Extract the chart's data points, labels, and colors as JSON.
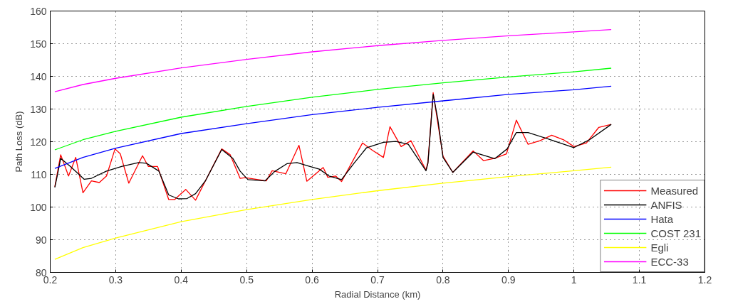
{
  "chart_data": {
    "type": "line",
    "xlabel": "Radial Distance (km)",
    "ylabel": "Path Loss (dB)",
    "xlim": [
      0.2,
      1.2
    ],
    "xticks": [
      0.2,
      0.3,
      0.4,
      0.5,
      0.6,
      0.7,
      0.8,
      0.9,
      1,
      1.1,
      1.2
    ],
    "ylim": [
      80,
      160
    ],
    "yticks": [
      80,
      90,
      100,
      110,
      120,
      130,
      140,
      150,
      160
    ],
    "grid": true,
    "legend": "bottom right",
    "marker": "none",
    "line_style": "solid",
    "series": [
      {
        "name": "Measured",
        "color": "#ff0000",
        "x": [
          0.207,
          0.216,
          0.228,
          0.239,
          0.25,
          0.263,
          0.275,
          0.286,
          0.299,
          0.307,
          0.32,
          0.341,
          0.35,
          0.364,
          0.381,
          0.39,
          0.407,
          0.422,
          0.437,
          0.462,
          0.475,
          0.49,
          0.498,
          0.53,
          0.539,
          0.56,
          0.58,
          0.592,
          0.617,
          0.624,
          0.636,
          0.645,
          0.677,
          0.692,
          0.709,
          0.719,
          0.736,
          0.751,
          0.774,
          0.777,
          0.785,
          0.791,
          0.8,
          0.815,
          0.846,
          0.862,
          0.879,
          0.897,
          0.912,
          0.93,
          0.948,
          0.966,
          0.985,
          1.0,
          1.019,
          1.038,
          1.057
        ],
        "values": [
          106.2,
          116.0,
          109.5,
          115.2,
          104.4,
          108.0,
          107.5,
          109.5,
          117.8,
          116.3,
          107.3,
          115.7,
          112.4,
          112.4,
          102.3,
          102.3,
          105.4,
          102.1,
          108.0,
          117.8,
          116.0,
          108.8,
          109.0,
          108.0,
          111.1,
          110.2,
          118.9,
          107.9,
          112.1,
          109.1,
          109.5,
          107.8,
          119.6,
          117.4,
          115.2,
          124.6,
          118.5,
          120.3,
          111.3,
          113.8,
          135.0,
          127.1,
          115.6,
          110.6,
          117.2,
          114.2,
          114.9,
          116.3,
          126.6,
          119.2,
          120.3,
          122.0,
          120.5,
          118.5,
          119.6,
          124.4,
          125.3
        ]
      },
      {
        "name": "ANFIS",
        "color": "#000000",
        "x": [
          0.207,
          0.211,
          0.216,
          0.231,
          0.252,
          0.263,
          0.286,
          0.309,
          0.335,
          0.347,
          0.366,
          0.381,
          0.396,
          0.409,
          0.422,
          0.437,
          0.462,
          0.479,
          0.49,
          0.502,
          0.528,
          0.543,
          0.562,
          0.577,
          0.592,
          0.611,
          0.626,
          0.645,
          0.664,
          0.683,
          0.709,
          0.728,
          0.747,
          0.774,
          0.777,
          0.785,
          0.792,
          0.8,
          0.815,
          0.846,
          0.879,
          0.898,
          0.912,
          0.93,
          0.963,
          1.0,
          1.023,
          1.057
        ],
        "values": [
          106.0,
          109.8,
          114.9,
          112.4,
          108.5,
          108.8,
          111.0,
          112.4,
          113.6,
          113.4,
          111.0,
          103.7,
          102.5,
          102.6,
          104.1,
          108.0,
          117.6,
          114.9,
          111.0,
          108.4,
          108.0,
          110.9,
          113.3,
          113.6,
          112.7,
          111.6,
          109.5,
          108.4,
          113.4,
          118.1,
          119.8,
          120.1,
          119.2,
          111.1,
          113.4,
          134.5,
          127.0,
          115.2,
          110.6,
          116.8,
          114.8,
          117.8,
          122.8,
          122.8,
          120.7,
          118.2,
          120.5,
          125.3
        ]
      },
      {
        "name": "Hata",
        "color": "#0000ff",
        "x": [
          0.207,
          0.25,
          0.3,
          0.4,
          0.5,
          0.6,
          0.7,
          0.8,
          0.9,
          1.0,
          1.057
        ],
        "values": [
          111.8,
          115.2,
          118.0,
          122.5,
          125.5,
          128.3,
          130.5,
          132.5,
          134.5,
          135.9,
          137.0
        ]
      },
      {
        "name": "COST 231",
        "color": "#00ff00",
        "x": [
          0.207,
          0.25,
          0.3,
          0.4,
          0.5,
          0.6,
          0.7,
          0.8,
          0.9,
          1.0,
          1.057
        ],
        "values": [
          117.5,
          120.6,
          123.2,
          127.5,
          130.8,
          133.6,
          136.0,
          138.0,
          139.8,
          141.4,
          142.5
        ]
      },
      {
        "name": "Egli",
        "color": "#ffff00",
        "x": [
          0.207,
          0.25,
          0.3,
          0.4,
          0.5,
          0.6,
          0.7,
          0.8,
          0.9,
          1.0,
          1.057
        ],
        "values": [
          84.0,
          87.6,
          90.5,
          95.5,
          99.2,
          102.3,
          105.0,
          107.3,
          109.3,
          111.1,
          112.2
        ]
      },
      {
        "name": "ECC-33",
        "color": "#ff00ff",
        "x": [
          0.207,
          0.25,
          0.3,
          0.4,
          0.5,
          0.6,
          0.7,
          0.8,
          0.9,
          1.0,
          1.057
        ],
        "values": [
          135.3,
          137.5,
          139.4,
          142.6,
          145.2,
          147.5,
          149.4,
          151.0,
          152.4,
          153.6,
          154.3
        ]
      }
    ]
  }
}
